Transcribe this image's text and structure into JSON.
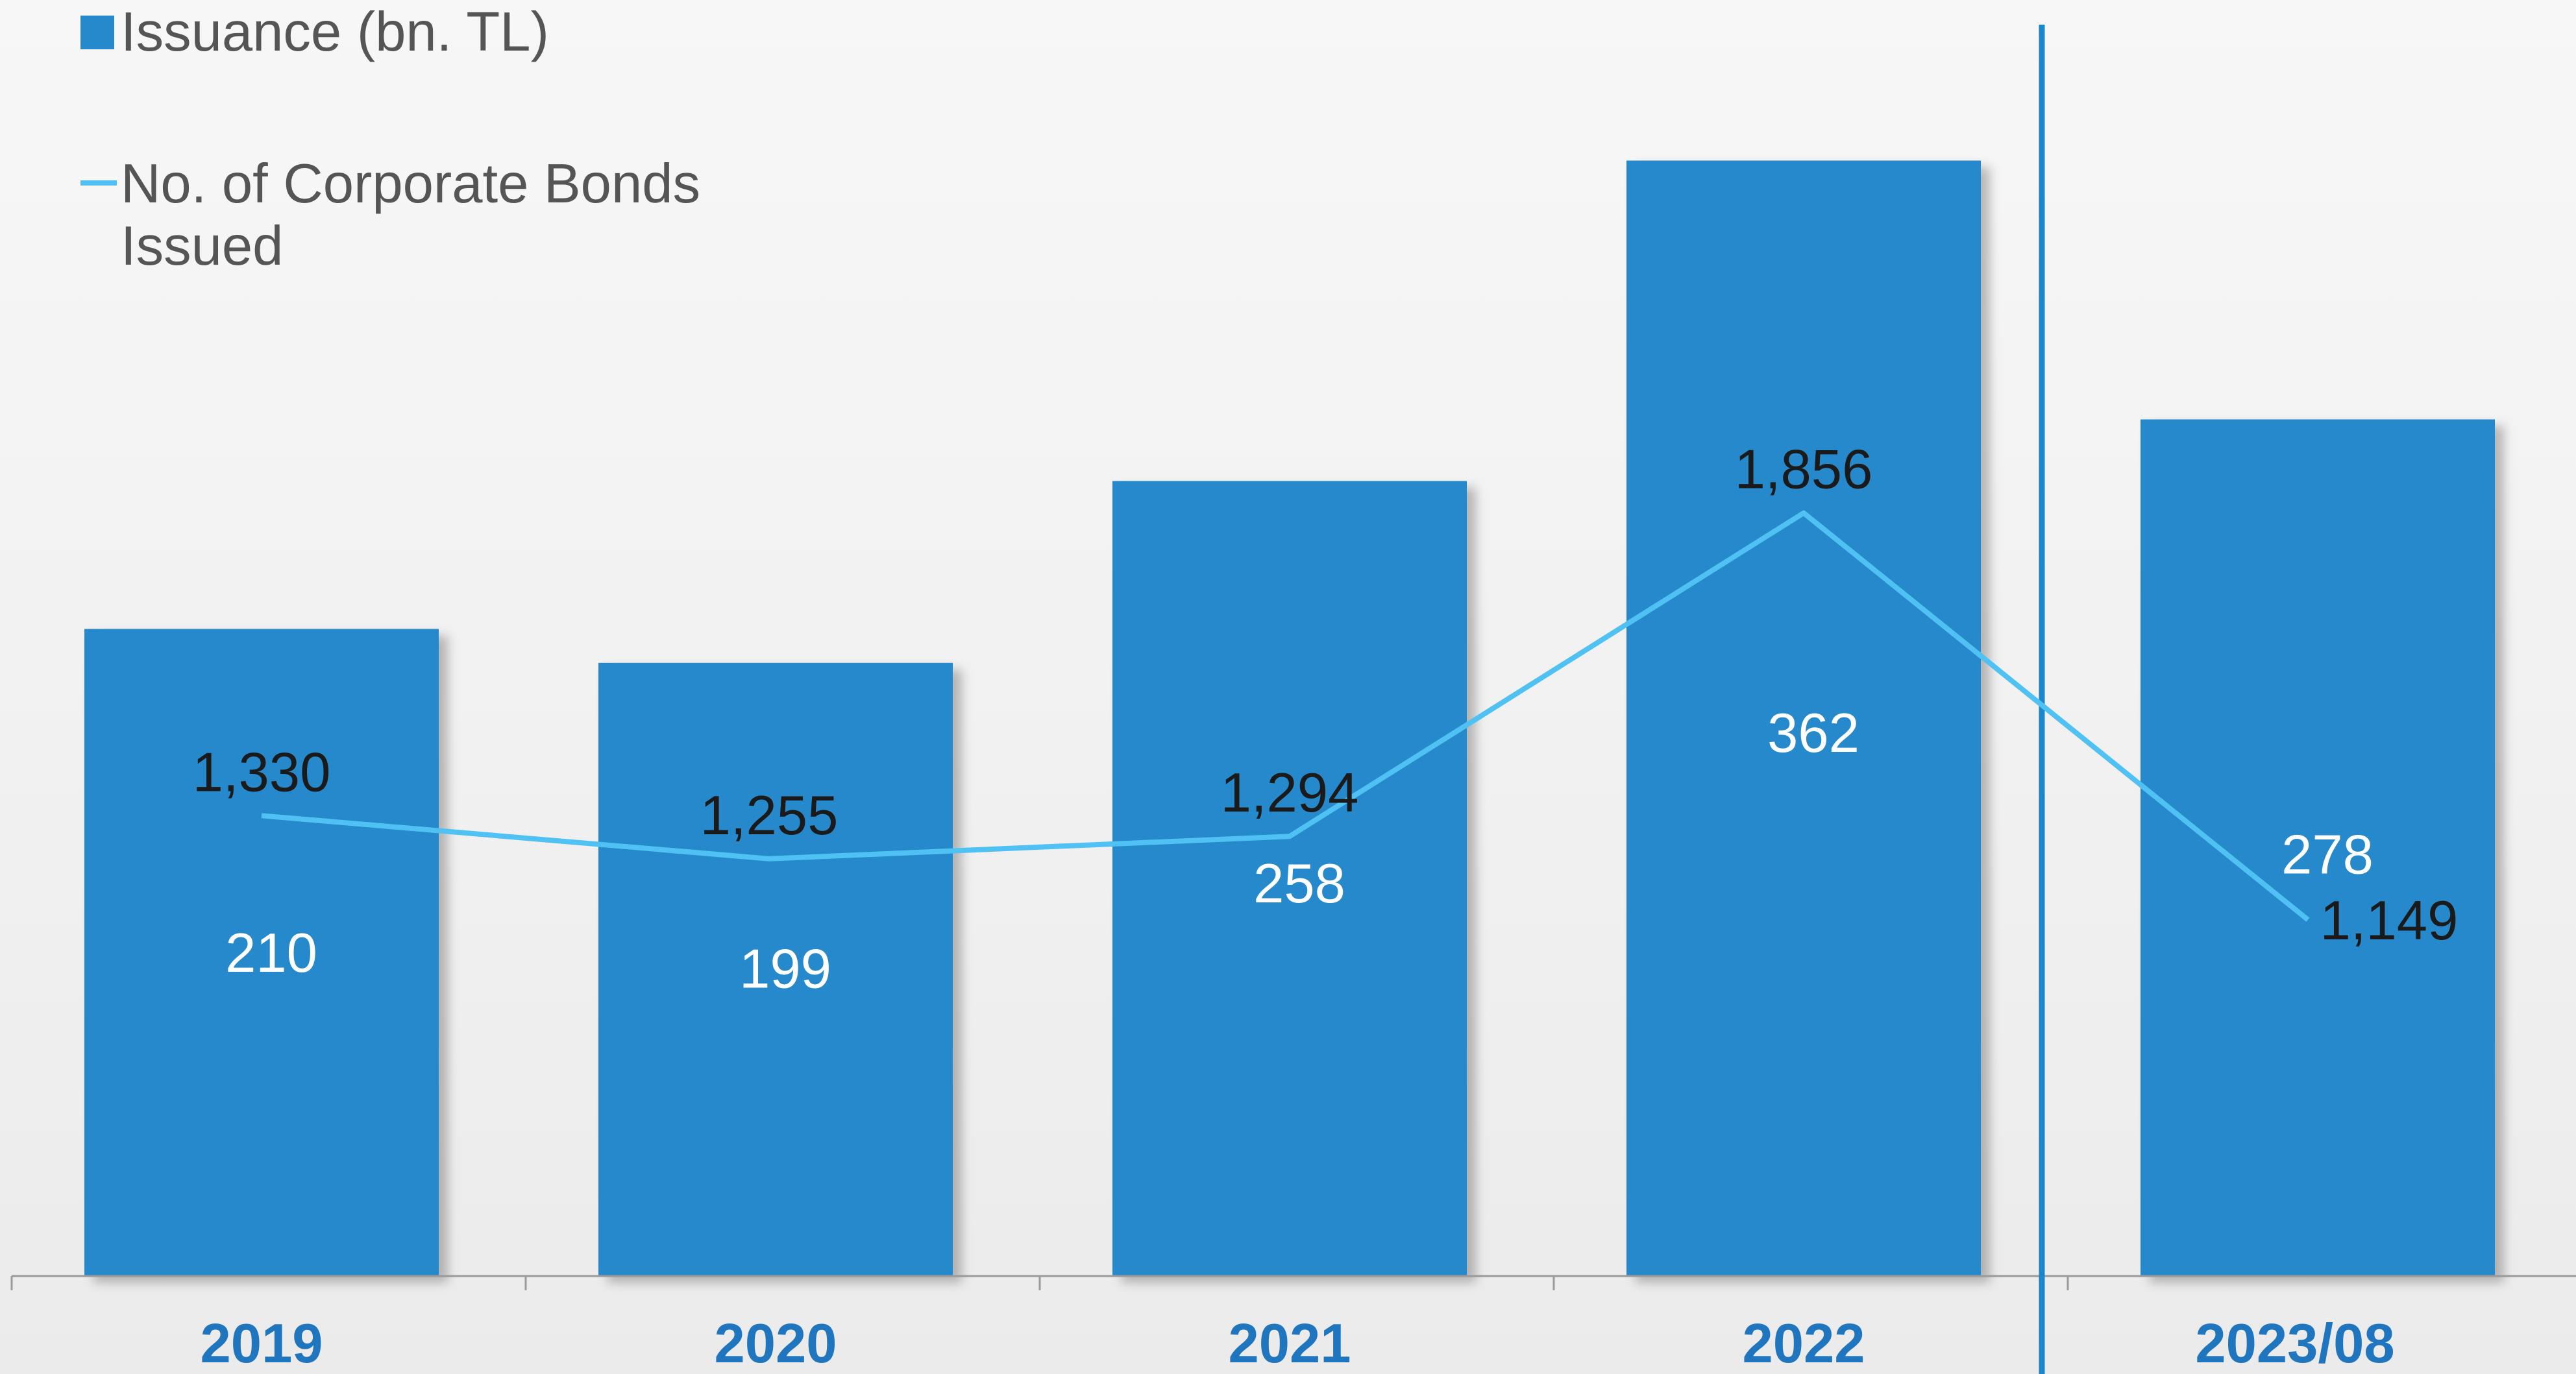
{
  "chart_data": {
    "type": "bar",
    "categories": [
      "2019",
      "2020",
      "2021",
      "2022",
      "2023/08"
    ],
    "series": [
      {
        "name": "Issuance (bn. TL)",
        "type": "bar",
        "values": [
          210,
          199,
          258,
          362,
          278
        ],
        "labels": [
          "210",
          "199",
          "258",
          "362",
          "278"
        ],
        "color": "#2589cb"
      },
      {
        "name": "No. of Corporate Bonds Issued",
        "type": "line",
        "values": [
          1330,
          1255,
          1294,
          1856,
          1149
        ],
        "labels": [
          "1,330",
          "1,255",
          "1,294",
          "1,856",
          "1,149"
        ],
        "color": "#4fc1f3"
      }
    ],
    "legend": {
      "position": "top-left",
      "bar_entry": "Issuance (bn. TL)",
      "line_entry_lines": [
        "No. of Corporate Bonds",
        "Issued"
      ]
    },
    "grid": false,
    "separator_before": "2023/08"
  },
  "colors": {
    "tick_label": "#1f75be",
    "axis": "#9a9a9a",
    "separator": "#1a86cc"
  }
}
